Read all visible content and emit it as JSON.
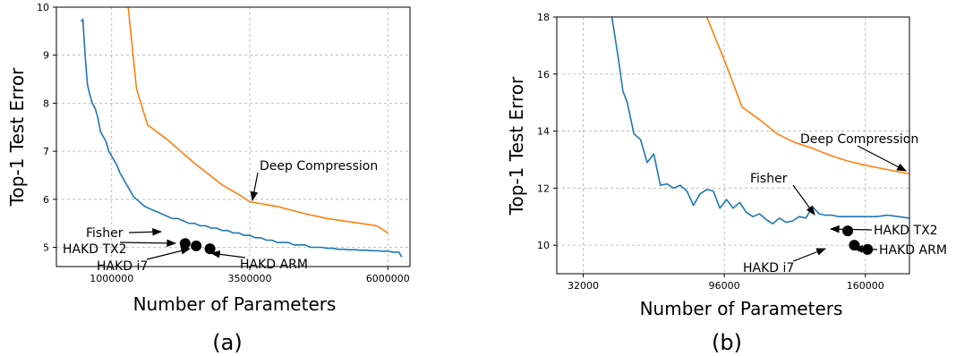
{
  "chart_data": [
    {
      "type": "line",
      "caption": "(a)",
      "xlabel": "Number of Parameters",
      "ylabel": "Top-1 Test Error",
      "xlim": [
        0,
        6400000
      ],
      "ylim": [
        4.6,
        10
      ],
      "x_ticks": [
        1000000,
        3500000,
        6000000
      ],
      "x_tick_labels": [
        "1000000",
        "3500000",
        "6000000"
      ],
      "y_ticks": [
        5,
        6,
        7,
        8,
        9,
        10
      ],
      "y_tick_labels": [
        "5",
        "6",
        "7",
        "8",
        "9",
        "10"
      ],
      "grid": true,
      "colors": {
        "series1": "#1f77b4",
        "series2": "#ff7f0e",
        "points": "#000000"
      },
      "series": [
        {
          "color": "#1f77b4",
          "x": [
            450000,
            480000,
            520000,
            560000,
            600000,
            650000,
            700000,
            750000,
            800000,
            850000,
            900000,
            950000,
            1000000,
            1050000,
            1100000,
            1150000,
            1200000,
            1250000,
            1300000,
            1350000,
            1400000,
            1450000,
            1500000,
            1600000,
            1700000,
            1800000,
            1900000,
            2000000,
            2100000,
            2200000,
            2300000,
            2400000,
            2500000,
            2600000,
            2700000,
            2800000,
            2900000,
            3000000,
            3100000,
            3200000,
            3300000,
            3400000,
            3500000,
            3600000,
            3700000,
            3800000,
            3900000,
            4000000,
            4100000,
            4200000,
            4300000,
            4400000,
            4500000,
            4600000,
            4700000,
            4800000,
            4900000,
            5000000,
            5100000,
            5200000,
            5300000,
            5400000,
            5500000,
            5600000,
            5700000,
            5800000,
            5900000,
            6000000,
            6100000,
            6200000,
            6250000
          ],
          "y": [
            9.7,
            9.75,
            9.0,
            8.4,
            8.2,
            8.0,
            7.9,
            7.7,
            7.4,
            7.3,
            7.2,
            7.0,
            6.9,
            6.8,
            6.7,
            6.55,
            6.45,
            6.35,
            6.25,
            6.15,
            6.05,
            6.0,
            5.95,
            5.85,
            5.8,
            5.75,
            5.7,
            5.65,
            5.6,
            5.6,
            5.55,
            5.5,
            5.5,
            5.45,
            5.45,
            5.4,
            5.4,
            5.35,
            5.35,
            5.3,
            5.3,
            5.25,
            5.25,
            5.2,
            5.2,
            5.15,
            5.15,
            5.1,
            5.1,
            5.1,
            5.05,
            5.05,
            5.05,
            5.0,
            5.0,
            5.0,
            4.98,
            4.98,
            4.96,
            4.96,
            4.95,
            4.95,
            4.94,
            4.94,
            4.93,
            4.93,
            4.92,
            4.92,
            4.9,
            4.9,
            4.8
          ]
        },
        {
          "color": "#ff7f0e",
          "x": [
            1300000,
            1450000,
            1650000,
            2000000,
            2500000,
            3000000,
            3300000,
            3500000,
            4000000,
            4500000,
            4900000,
            5500000,
            5800000,
            6000000
          ],
          "y": [
            10.0,
            8.3,
            7.55,
            7.25,
            6.75,
            6.3,
            6.1,
            5.95,
            5.85,
            5.7,
            5.6,
            5.5,
            5.45,
            5.3
          ]
        }
      ],
      "points": [
        {
          "x": 2330000,
          "y": 5.08
        },
        {
          "x": 2530000,
          "y": 5.03
        },
        {
          "x": 2780000,
          "y": 4.97
        }
      ],
      "annotations": [
        {
          "text": "Deep Compression",
          "x": 3500000,
          "y": 5.95
        },
        {
          "text": "Fisher",
          "x": 2330000,
          "y": 5.08
        },
        {
          "text": "HAKD TX2",
          "x": 2530000,
          "y": 5.03
        },
        {
          "text": "HAKD i7",
          "x": 2530000,
          "y": 5.03
        },
        {
          "text": "HAKD ARM",
          "x": 2780000,
          "y": 4.97
        }
      ]
    },
    {
      "type": "line",
      "caption": "(b)",
      "xlabel": "Number of Parameters",
      "ylabel": "Top-1 Test Error",
      "xlim": [
        20000,
        180000
      ],
      "ylim": [
        9,
        18
      ],
      "x_ticks": [
        32000,
        96000,
        160000
      ],
      "x_tick_labels": [
        "32000",
        "96000",
        "160000"
      ],
      "y_ticks": [
        10,
        12,
        14,
        16,
        18
      ],
      "y_tick_labels": [
        "10",
        "12",
        "14",
        "16",
        "18"
      ],
      "grid": true,
      "colors": {
        "series1": "#1f77b4",
        "series2": "#ff7f0e",
        "points": "#000000"
      },
      "series": [
        {
          "color": "#1f77b4",
          "x": [
            45000,
            48000,
            50000,
            52000,
            55000,
            58000,
            61000,
            64000,
            67000,
            70000,
            73000,
            76000,
            79000,
            82000,
            85000,
            88000,
            91000,
            94000,
            97000,
            100000,
            103000,
            106000,
            109000,
            112000,
            115000,
            118000,
            121000,
            124000,
            127000,
            130000,
            133000,
            136000,
            139000,
            142000,
            145000,
            148000,
            151000,
            154000,
            157000,
            160000,
            165000,
            170000,
            175000,
            180000
          ],
          "y": [
            18.0,
            16.5,
            15.4,
            15.0,
            13.9,
            13.7,
            12.9,
            13.2,
            12.1,
            12.15,
            12.0,
            12.1,
            11.9,
            11.4,
            11.8,
            11.95,
            11.9,
            11.3,
            11.6,
            11.3,
            11.5,
            11.15,
            11.0,
            11.1,
            10.9,
            10.75,
            10.95,
            10.8,
            10.85,
            11.0,
            10.95,
            11.35,
            11.1,
            11.05,
            11.05,
            11.0,
            11.0,
            11.0,
            11.0,
            11.0,
            11.0,
            11.05,
            11.0,
            10.95
          ]
        },
        {
          "color": "#ff7f0e",
          "x": [
            88000,
            96000,
            104000,
            112000,
            120000,
            128000,
            136000,
            144000,
            152000,
            160000,
            170000,
            180000
          ],
          "y": [
            18.0,
            16.5,
            14.85,
            14.4,
            13.9,
            13.6,
            13.4,
            13.15,
            12.95,
            12.8,
            12.65,
            12.5
          ]
        }
      ],
      "points": [
        {
          "x": 152000,
          "y": 10.5
        },
        {
          "x": 155000,
          "y": 10.0
        },
        {
          "x": 161000,
          "y": 9.85
        }
      ],
      "annotations": [
        {
          "text": "Deep Compression",
          "x": 180000,
          "y": 12.5
        },
        {
          "text": "Fisher",
          "x": 150000,
          "y": 10.85
        },
        {
          "text": "HAKD TX2",
          "x": 152000,
          "y": 10.5
        },
        {
          "text": "HAKD i7",
          "x": 155000,
          "y": 10.0
        },
        {
          "text": "HAKD ARM",
          "x": 161000,
          "y": 9.85
        }
      ]
    }
  ]
}
